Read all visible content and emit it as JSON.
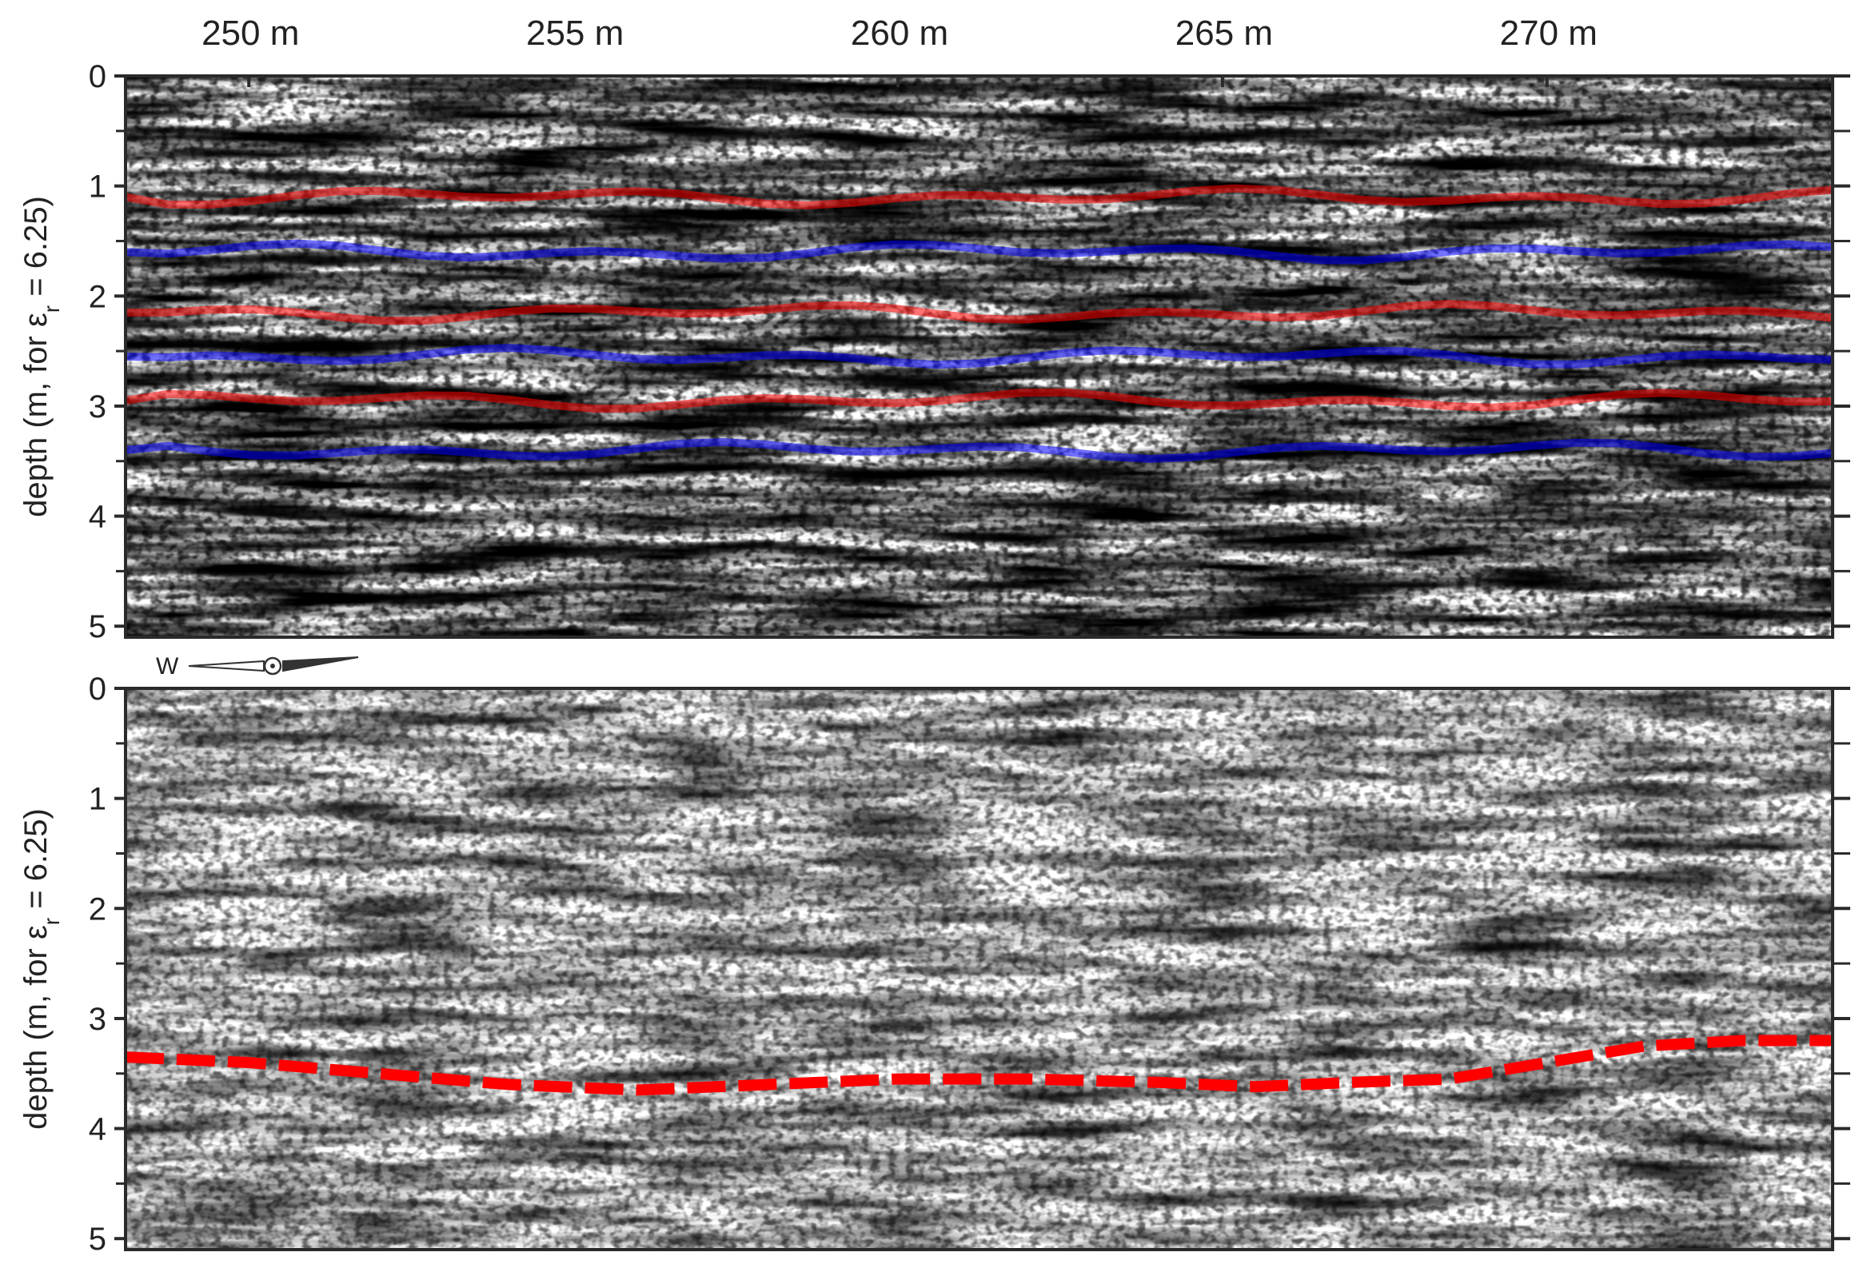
{
  "chart_data": [
    {
      "type": "heatmap",
      "panel": "top",
      "x_unit": "m",
      "x_ticks": [
        250,
        255,
        260,
        265,
        270
      ],
      "x_tick_labels": [
        "250 m",
        "255 m",
        "260 m",
        "265 m",
        "270 m"
      ],
      "xlim": [
        248.1,
        274.4
      ],
      "ylabel": "depth (m, for εr = 6.25)",
      "ylabel_parts": {
        "before": "depth (m, for ε",
        "sub": "r",
        "after": " = 6.25)"
      },
      "y_ticks": [
        0,
        1,
        2,
        3,
        4,
        5
      ],
      "y_minor_ticks": [
        0.5,
        1.5,
        2.5,
        3.5,
        4.5
      ],
      "ylim": [
        5.1,
        0
      ],
      "colors": {
        "positive": "#ff0000",
        "negative": "#0000ff",
        "zero": "#ffffff"
      },
      "strong_reflectors_depth_m": [
        1.1,
        1.6,
        2.15,
        2.55,
        2.95,
        3.4
      ],
      "noisy_below_depth_m": 3.9
    },
    {
      "type": "heatmap",
      "panel": "bottom",
      "direction_label": "W",
      "xlim": [
        248.1,
        274.4
      ],
      "ylabel": "depth (m, for εr = 6.25)",
      "ylabel_parts": {
        "before": "depth (m, for ε",
        "sub": "r",
        "after": " = 6.25)"
      },
      "y_ticks": [
        0,
        1,
        2,
        3,
        4,
        5
      ],
      "y_minor_ticks": [
        0.5,
        1.5,
        2.5,
        3.5,
        4.5
      ],
      "ylim": [
        5.1,
        0
      ],
      "colors": {
        "positive": "#ff0000",
        "negative": "#0000ff",
        "zero": "#ffffff",
        "interpreted_boundary": "#ff0000"
      },
      "interpreted_boundary": {
        "style": "dashed",
        "x": [
          248.1,
          250,
          252,
          254,
          256,
          258,
          260,
          262,
          264,
          265.5,
          267,
          268.5,
          270,
          271.5,
          273,
          274.4
        ],
        "depth": [
          3.35,
          3.4,
          3.5,
          3.6,
          3.65,
          3.6,
          3.55,
          3.55,
          3.58,
          3.62,
          3.58,
          3.55,
          3.4,
          3.25,
          3.2,
          3.2
        ]
      }
    }
  ]
}
